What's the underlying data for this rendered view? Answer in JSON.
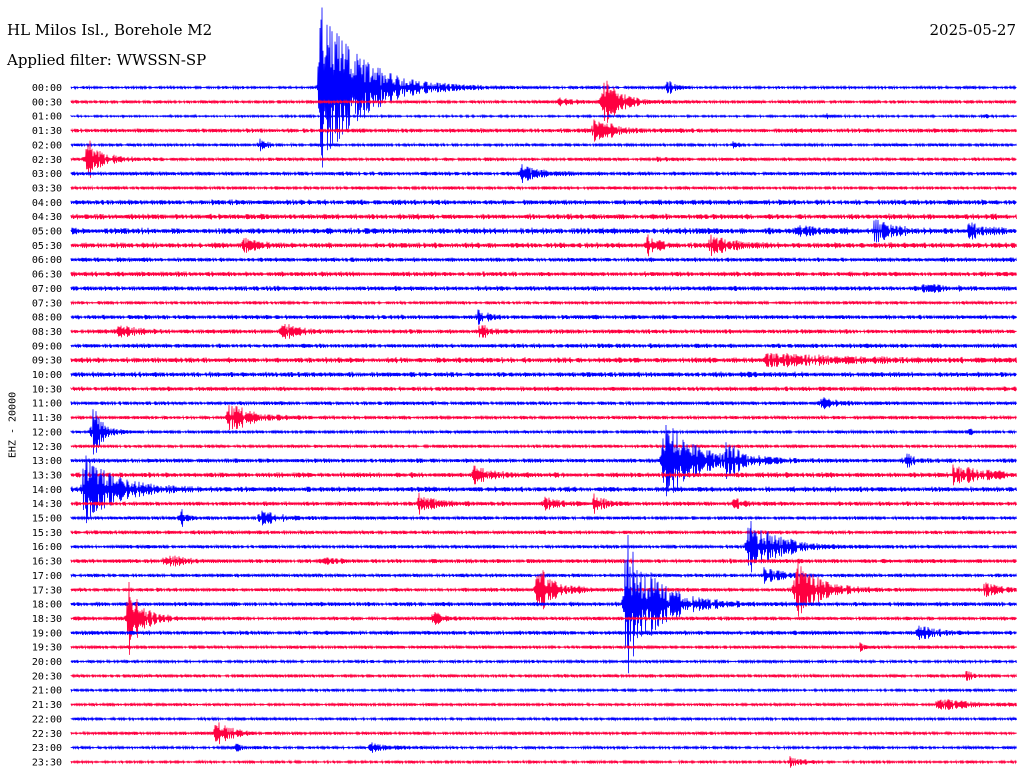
{
  "header": {
    "title": "HL Milos Isl., Borehole M2",
    "filter": "Applied filter: WWSSN-SP",
    "date": "2025-05-27"
  },
  "chart_data": {
    "type": "line",
    "title": "HL Milos Isl., Borehole M2",
    "subtitle": "Applied filter: WWSSN-SP",
    "ylabel": "EHZ - 20000",
    "xlabel": "",
    "date": "2025-05-27",
    "grid": false,
    "colors": [
      "#0000ff",
      "#ff0040"
    ],
    "tick_labels": [
      "00:00",
      "00:30",
      "01:00",
      "01:30",
      "02:00",
      "02:30",
      "03:00",
      "03:30",
      "04:00",
      "04:30",
      "05:00",
      "05:30",
      "06:00",
      "06:30",
      "07:00",
      "07:30",
      "08:00",
      "08:30",
      "09:00",
      "09:30",
      "10:00",
      "10:30",
      "11:00",
      "11:30",
      "12:00",
      "12:30",
      "13:00",
      "13:30",
      "14:00",
      "14:30",
      "15:00",
      "15:30",
      "16:00",
      "16:30",
      "17:00",
      "17:30",
      "18:00",
      "18:30",
      "19:00",
      "19:30",
      "20:00",
      "20:30",
      "21:00",
      "21:30",
      "22:00",
      "22:30",
      "23:00",
      "23:30"
    ],
    "trace_minutes": 30,
    "noise_levels": [
      1.5,
      1.8,
      1.2,
      2.5,
      1.6,
      2.0,
      2.2,
      1.8,
      3.0,
      3.2,
      3.5,
      3.2,
      2.5,
      2.8,
      2.8,
      1.8,
      2.5,
      2.5,
      2.5,
      3.2,
      3.0,
      2.5,
      2.2,
      2.0,
      1.8,
      1.8,
      2.5,
      3.0,
      3.0,
      2.5,
      2.0,
      2.2,
      2.0,
      2.5,
      2.0,
      2.2,
      2.5,
      2.2,
      2.5,
      1.8,
      1.6,
      1.8,
      1.6,
      1.6,
      1.6,
      1.8,
      1.5,
      1.5
    ],
    "events": [
      {
        "trace": 0,
        "minute": 7.9,
        "amplitude": 90,
        "duration": 3.5
      },
      {
        "trace": 0,
        "minute": 18.9,
        "amplitude": 9,
        "duration": 0.6
      },
      {
        "trace": 1,
        "minute": 15.5,
        "amplitude": 4,
        "duration": 1.5
      },
      {
        "trace": 1,
        "minute": 16.8,
        "amplitude": 35,
        "duration": 1.3
      },
      {
        "trace": 2,
        "minute": 24.0,
        "amplitude": 3,
        "duration": 0.3
      },
      {
        "trace": 2,
        "minute": 29.0,
        "amplitude": 3,
        "duration": 0.3
      },
      {
        "trace": 3,
        "minute": 16.6,
        "amplitude": 18,
        "duration": 1.4
      },
      {
        "trace": 4,
        "minute": 6.0,
        "amplitude": 6,
        "duration": 0.6
      },
      {
        "trace": 4,
        "minute": 21.0,
        "amplitude": 3,
        "duration": 0.5
      },
      {
        "trace": 5,
        "minute": 0.5,
        "amplitude": 22,
        "duration": 1.2
      },
      {
        "trace": 5,
        "minute": 18.6,
        "amplitude": 4,
        "duration": 0.6
      },
      {
        "trace": 6,
        "minute": 14.3,
        "amplitude": 8,
        "duration": 1.6
      },
      {
        "trace": 10,
        "minute": 23.0,
        "amplitude": 6,
        "duration": 1.5
      },
      {
        "trace": 10,
        "minute": 25.5,
        "amplitude": 12,
        "duration": 1.5
      },
      {
        "trace": 10,
        "minute": 28.5,
        "amplitude": 9,
        "duration": 1.4
      },
      {
        "trace": 11,
        "minute": 5.5,
        "amplitude": 8,
        "duration": 1.0
      },
      {
        "trace": 11,
        "minute": 18.3,
        "amplitude": 10,
        "duration": 1.0
      },
      {
        "trace": 11,
        "minute": 20.3,
        "amplitude": 12,
        "duration": 1.6
      },
      {
        "trace": 14,
        "minute": 27.0,
        "amplitude": 5,
        "duration": 1.4
      },
      {
        "trace": 16,
        "minute": 12.9,
        "amplitude": 7,
        "duration": 0.8
      },
      {
        "trace": 17,
        "minute": 1.5,
        "amplitude": 6,
        "duration": 1.5
      },
      {
        "trace": 17,
        "minute": 6.7,
        "amplitude": 10,
        "duration": 1.2
      },
      {
        "trace": 17,
        "minute": 13.0,
        "amplitude": 14,
        "duration": 0.6
      },
      {
        "trace": 19,
        "minute": 22.0,
        "amplitude": 6,
        "duration": 6.0
      },
      {
        "trace": 22,
        "minute": 23.8,
        "amplitude": 6,
        "duration": 1.2
      },
      {
        "trace": 23,
        "minute": 5.0,
        "amplitude": 15,
        "duration": 2.0
      },
      {
        "trace": 24,
        "minute": 0.7,
        "amplitude": 30,
        "duration": 0.8
      },
      {
        "trace": 24,
        "minute": 28.5,
        "amplitude": 4,
        "duration": 0.3
      },
      {
        "trace": 26,
        "minute": 18.8,
        "amplitude": 45,
        "duration": 2.5
      },
      {
        "trace": 26,
        "minute": 20.8,
        "amplitude": 15,
        "duration": 1.5
      },
      {
        "trace": 26,
        "minute": 26.5,
        "amplitude": 8,
        "duration": 0.8
      },
      {
        "trace": 27,
        "minute": 12.8,
        "amplitude": 12,
        "duration": 1.2
      },
      {
        "trace": 27,
        "minute": 28.0,
        "amplitude": 10,
        "duration": 2.5
      },
      {
        "trace": 28,
        "minute": 0.4,
        "amplitude": 40,
        "duration": 2.5
      },
      {
        "trace": 29,
        "minute": 11.0,
        "amplitude": 10,
        "duration": 1.5
      },
      {
        "trace": 29,
        "minute": 15.0,
        "amplitude": 10,
        "duration": 1.0
      },
      {
        "trace": 29,
        "minute": 16.6,
        "amplitude": 9,
        "duration": 0.9
      },
      {
        "trace": 29,
        "minute": 21.0,
        "amplitude": 8,
        "duration": 0.8
      },
      {
        "trace": 30,
        "minute": 3.5,
        "amplitude": 9,
        "duration": 0.6
      },
      {
        "trace": 30,
        "minute": 6.0,
        "amplitude": 10,
        "duration": 1.5
      },
      {
        "trace": 32,
        "minute": 21.5,
        "amplitude": 30,
        "duration": 2.5
      },
      {
        "trace": 33,
        "minute": 3.0,
        "amplitude": 7,
        "duration": 1.2
      },
      {
        "trace": 33,
        "minute": 8.0,
        "amplitude": 6,
        "duration": 0.8
      },
      {
        "trace": 34,
        "minute": 22.0,
        "amplitude": 10,
        "duration": 1.2
      },
      {
        "trace": 35,
        "minute": 14.8,
        "amplitude": 25,
        "duration": 1.5
      },
      {
        "trace": 35,
        "minute": 23.0,
        "amplitude": 30,
        "duration": 2.0
      },
      {
        "trace": 35,
        "minute": 29.0,
        "amplitude": 6,
        "duration": 1.5
      },
      {
        "trace": 36,
        "minute": 17.6,
        "amplitude": 75,
        "duration": 2.5
      },
      {
        "trace": 37,
        "minute": 1.8,
        "amplitude": 40,
        "duration": 1.2
      },
      {
        "trace": 37,
        "minute": 11.5,
        "amplitude": 10,
        "duration": 0.6
      },
      {
        "trace": 38,
        "minute": 26.9,
        "amplitude": 10,
        "duration": 1.2
      },
      {
        "trace": 39,
        "minute": 25.0,
        "amplitude": 5,
        "duration": 0.4
      },
      {
        "trace": 41,
        "minute": 28.4,
        "amplitude": 5,
        "duration": 0.6
      },
      {
        "trace": 43,
        "minute": 27.5,
        "amplitude": 6,
        "duration": 3.0
      },
      {
        "trace": 45,
        "minute": 4.6,
        "amplitude": 14,
        "duration": 1.2
      },
      {
        "trace": 46,
        "minute": 5.2,
        "amplitude": 5,
        "duration": 0.8
      },
      {
        "trace": 46,
        "minute": 9.5,
        "amplitude": 5,
        "duration": 2.0
      },
      {
        "trace": 47,
        "minute": 22.8,
        "amplitude": 6,
        "duration": 1.0
      }
    ]
  }
}
